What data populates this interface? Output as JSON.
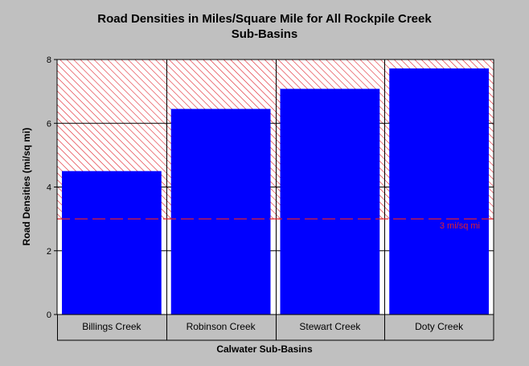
{
  "chart_data": {
    "type": "bar",
    "title_lines": [
      "Road Densities in Miles/Square Mile for All Rockpile Creek",
      "Sub-Basins"
    ],
    "xlabel": "Calwater Sub-Basins",
    "ylabel": "Road Densities (mi/sq mi)",
    "categories": [
      "Billings Creek",
      "Robinson Creek",
      "Stewart Creek",
      "Doty Creek"
    ],
    "values": [
      4.5,
      6.45,
      7.08,
      7.72
    ],
    "ylim": [
      0,
      8
    ],
    "yticks": [
      "0",
      "2",
      "4",
      "6",
      "8"
    ],
    "grid": true,
    "threshold": {
      "value": 3,
      "label": "3 mi/sq mi",
      "color": "#e0202a"
    },
    "bar_color": "#0000ff",
    "hatch_color": "#e0202a",
    "background_color": "#ffffff"
  }
}
